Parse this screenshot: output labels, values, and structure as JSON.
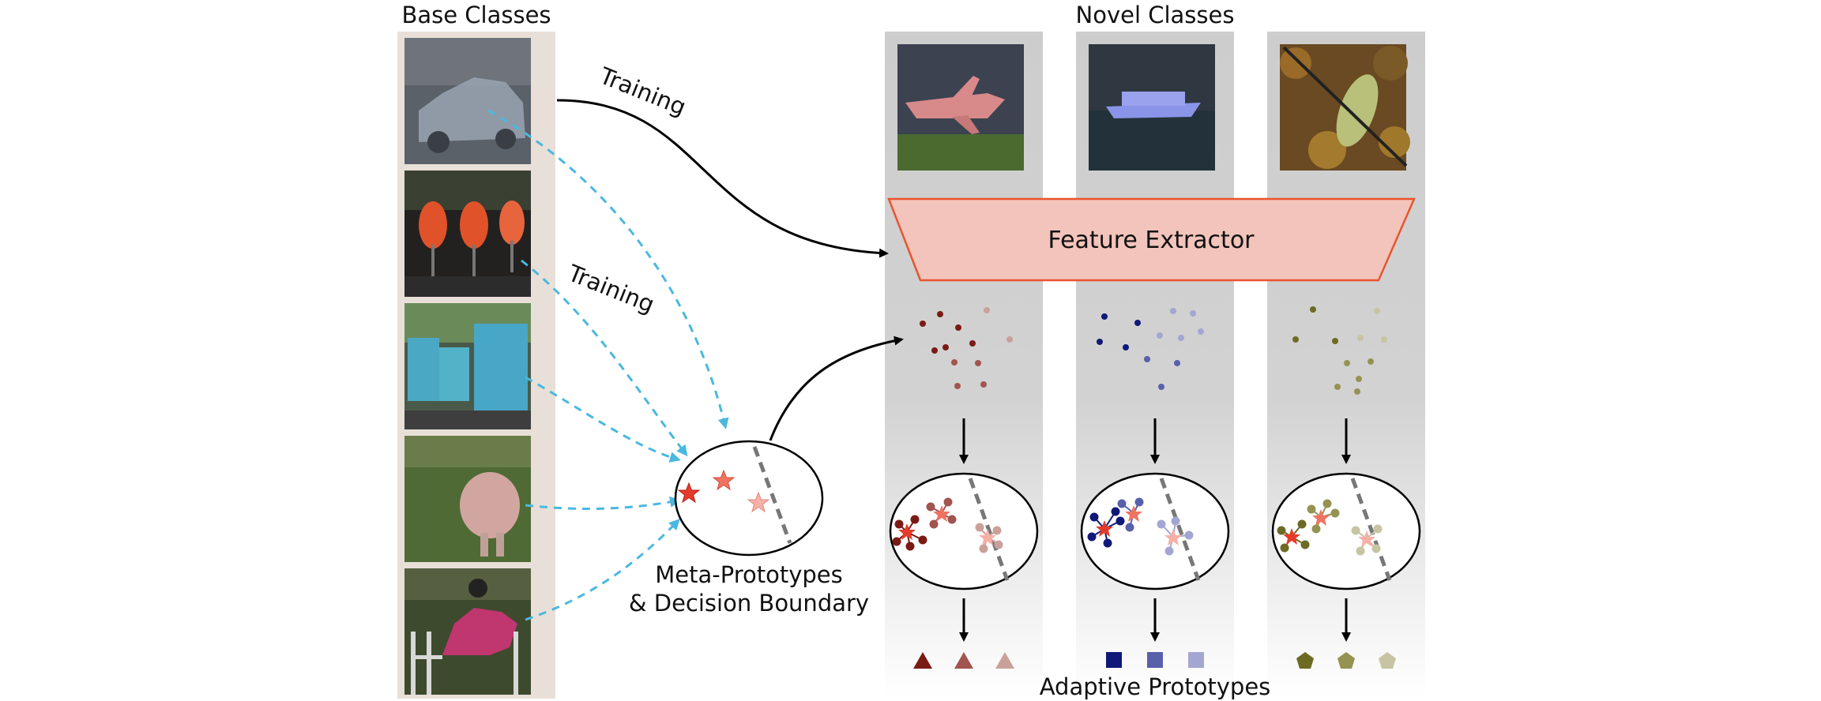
{
  "labels": {
    "base_classes": "Base Classes",
    "novel_classes": "Novel Classes",
    "training_top": "Training",
    "training_bottom": "Training",
    "feature_extractor": "Feature Extractor",
    "meta_prototypes_line1": "Meta-Prototypes",
    "meta_prototypes_line2": "& Decision Boundary",
    "adaptive_prototypes": "Adaptive Prototypes"
  },
  "base_images": [
    {
      "name": "car",
      "object": "car-icon"
    },
    {
      "name": "chairs",
      "object": "chair-icon"
    },
    {
      "name": "buses",
      "object": "bus-icon"
    },
    {
      "name": "pig",
      "object": "pig-icon"
    },
    {
      "name": "horse-rider",
      "object": "horse-icon"
    }
  ],
  "novel_images": [
    {
      "name": "airplane",
      "object": "airplane-icon"
    },
    {
      "name": "boat",
      "object": "boat-icon"
    },
    {
      "name": "bird",
      "object": "bird-icon"
    }
  ],
  "colors": {
    "panel_bg": "#e8e0d8",
    "column_gradient_top": "#cfcfcf",
    "feature_fill": "#f2c4bb",
    "feature_stroke": "#e8552e",
    "dashed_arrow": "#4ab8df",
    "red_series": [
      "#7a1a14",
      "#a2544e",
      "#c9a19a"
    ],
    "blue_series": [
      "#101878",
      "#5960ab",
      "#a4a6d2"
    ],
    "olive_series": [
      "#6d6a24",
      "#959352",
      "#c6c4a3"
    ]
  },
  "columns": [
    {
      "name": "airplane",
      "shape": "triangle"
    },
    {
      "name": "boat",
      "shape": "square"
    },
    {
      "name": "bird",
      "shape": "pentagon"
    }
  ]
}
